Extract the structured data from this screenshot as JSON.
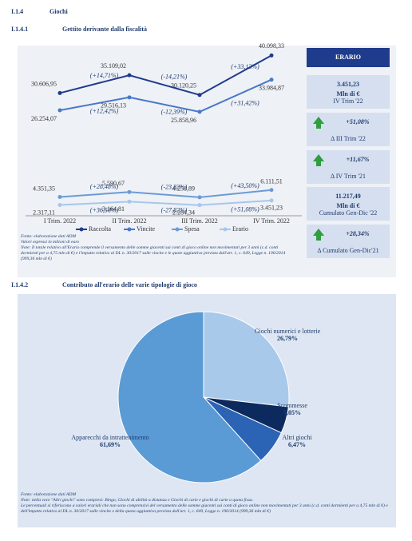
{
  "headings": [
    {
      "number": "I.1.4",
      "title": "Giochi"
    },
    {
      "number": "I.1.4.1",
      "title": "Gettito derivante dalla fiscalità"
    },
    {
      "number": "I.1.4.2",
      "title": "Contributo all'erario delle varie tipologie di gioco"
    }
  ],
  "chart_data": [
    {
      "type": "line",
      "categories": [
        "I Trim. 2022",
        "II Trim. 2022",
        "III Trim. 2022",
        "IV Trim. 2022"
      ],
      "ylim": [
        0,
        42000
      ],
      "legend": "bottom",
      "series": [
        {
          "name": "Raccolta",
          "color": "#1f3b8c",
          "values": [
            30606.95,
            35109.02,
            30120.25,
            40098.33
          ],
          "value_labels": [
            "30.606,95",
            "35.109,02",
            "30.120,25",
            "40.098,33"
          ],
          "change_labels": [
            "(+14,71%)",
            "(-14,21%)",
            "(+33,13%)"
          ]
        },
        {
          "name": "Vincite",
          "color": "#4a78c8",
          "values": [
            26254.07,
            29516.13,
            25858.96,
            33984.87
          ],
          "value_labels": [
            "26.254,07",
            "29.516,13",
            "25.858,96",
            "33.984,87"
          ],
          "change_labels": [
            "(+12,42%)",
            "(-12,39%)",
            "(+31,42%)"
          ]
        },
        {
          "name": "Spesa",
          "color": "#6b9bd6",
          "values": [
            4351.35,
            5590.67,
            4258.89,
            6111.51
          ],
          "value_labels": [
            "4.351,35",
            "5.590,67",
            "4.258,89",
            "6.111,51"
          ],
          "change_labels": [
            "(+28,48%)",
            "(-23,82%)",
            "(+43,50%)"
          ]
        },
        {
          "name": "Erario",
          "color": "#a9c6ea",
          "values": [
            2317.11,
            3164.81,
            2284.34,
            3451.23
          ],
          "value_labels": [
            "2.317,11",
            "3.164,81",
            "2.284,34",
            "3.451,23"
          ],
          "change_labels": [
            "(+36,58%)",
            "(-27,82%)",
            "(+51,08%)"
          ]
        }
      ]
    },
    {
      "type": "pie",
      "categories": [
        "Giochi numerici e lotterie",
        "Scommesse",
        "Altri giochi",
        "Apparecchi da intrattenimento"
      ],
      "values": [
        26.79,
        5.05,
        6.47,
        61.69
      ],
      "value_labels": [
        "26,79%",
        "5,05%",
        "6,47%",
        "61,69%"
      ],
      "colors": [
        "#a9c9ea",
        "#0d2a5e",
        "#2b63b5",
        "#5b9bd5"
      ]
    }
  ],
  "erario_panel": {
    "title": "ERARIO",
    "boxes": [
      {
        "value": "3.451,23",
        "unit": "Mln di €",
        "caption": "IV Trim '22"
      },
      {
        "value": "+51,08%",
        "caption": "Δ III Trim '22"
      },
      {
        "value": "+11,67%",
        "caption": "Δ IV Trim '21"
      },
      {
        "value": "11.217,49",
        "unit": "Mln di €",
        "caption": "Cumulato Gen-Dic '22"
      },
      {
        "value": "+28,34%",
        "caption": "Δ Cumulato Gen-Dic'21"
      }
    ]
  },
  "notes_1": [
    "Fonte: elaborazione dati ADM",
    "Valori espressi in milioni di euro",
    "Note: Il totale relativo all'Erario comprende il versamento delle somme giacenti sui conti di gioco online non movimentati per 3 anni (c.d. conti dormienti per a 4,75 mln di €) e l'impatto relativo al DL n. 30/2017 sulle vincite e le quote aggiuntiva prevista dall'art. 1, c. 649, Legge n. 190/2014 (999,36 mln di €)"
  ],
  "notes_2": [
    "Fonte: elaborazione dati ADM",
    "Note: nella voce \"Altri giochi\" sono compresi: Bingo, Giochi di abilità a distanza e Giochi di carte e giochi di carte a quota fissa.",
    "Le percentuali si riferiscono a valori erariali che non sono comprensivi del versamento delle somme giacenti sui conti di gioco online non movimentati per 3 anni (c.d. conti dormienti per a 4,75 mln di €) e dell'impatto relativo al DL n. 30/2017 sulle vincite e della quota aggiuntiva prevista dall'art. 1, c. 649, Legge n. 190/2014 (999,36 mln di €)"
  ]
}
